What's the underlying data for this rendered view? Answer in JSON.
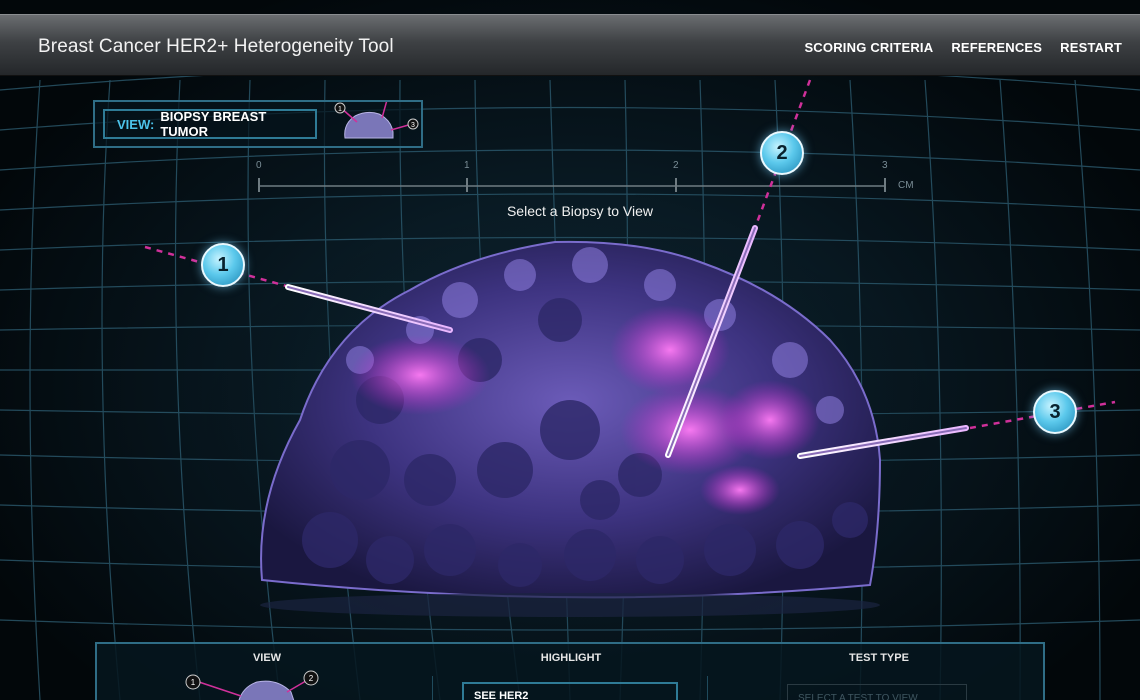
{
  "app": {
    "title": "Breast Cancer HER2+ Heterogeneity Tool"
  },
  "nav": {
    "items": [
      "SCORING CRITERIA",
      "REFERENCES",
      "RESTART"
    ]
  },
  "view_panel": {
    "label": "VIEW:",
    "value": "BIOPSY BREAST TUMOR",
    "thumb_markers": [
      "1",
      "2",
      "3"
    ]
  },
  "ruler": {
    "ticks": [
      "0",
      "1",
      "2",
      "3"
    ],
    "unit": "CM"
  },
  "prompt": "Select a Biopsy to View",
  "biopsies": [
    "1",
    "2",
    "3"
  ],
  "bottom": {
    "view_head": "VIEW",
    "highlight_head": "HIGHLIGHT",
    "test_type_head": "TEST TYPE",
    "highlight_button": "SEE HER2",
    "test_select_placeholder": "SELECT A TEST TO VIEW",
    "thumb_markers": [
      "1",
      "2"
    ]
  },
  "colors": {
    "accent": "#4cc3ea",
    "panel_border": "#2f6d86",
    "her2_magenta": "#e040e0",
    "tumor_purple": "#4a3f8f"
  }
}
